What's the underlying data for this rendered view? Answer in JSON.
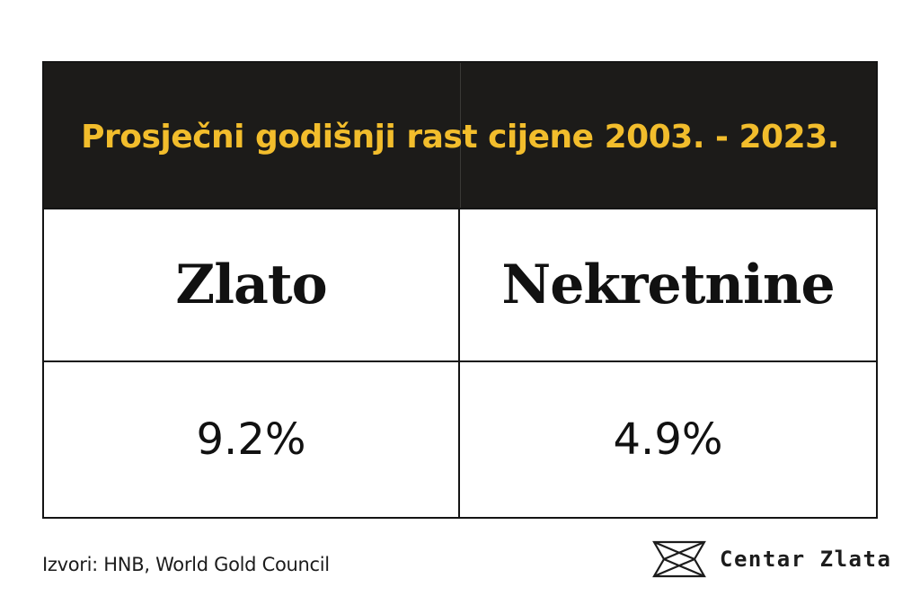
{
  "chart_data": {
    "type": "table",
    "title": "Prosječni godišnji rast cijene 2003. - 2023.",
    "columns": [
      "Zlato",
      "Nekretnine"
    ],
    "values": [
      "9.2%",
      "4.9%"
    ]
  },
  "footer": {
    "source": "Izvori: HNB, World Gold Council",
    "brand": "Centar Zlata"
  },
  "colors": {
    "header_bg": "#1c1b19",
    "title": "#f2bd2c",
    "text": "#111111",
    "border": "#141414"
  },
  "icons": {
    "brand_logo": "gold-bar-logo-icon"
  }
}
